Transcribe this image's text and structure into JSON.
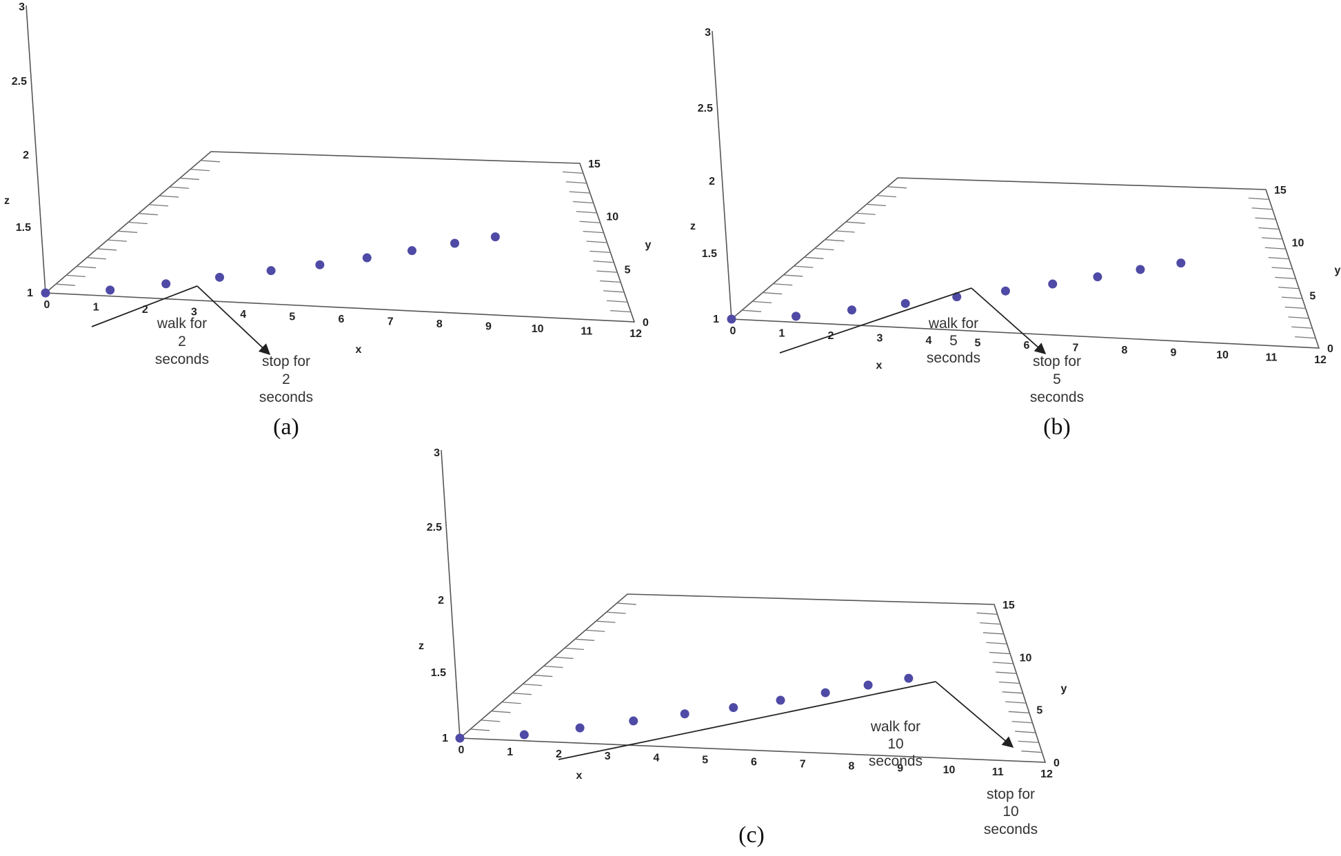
{
  "chart_data": [
    {
      "type": "scatter",
      "panel_label": "(a)",
      "xlabel": "x",
      "ylabel": "y",
      "zlabel": "z",
      "xlim": [
        0,
        12
      ],
      "ylim": [
        0,
        15
      ],
      "zlim": [
        1,
        3
      ],
      "xticks": [
        "0",
        "1",
        "2",
        "3",
        "4",
        "5",
        "6",
        "7",
        "8",
        "9",
        "10",
        "11",
        "12"
      ],
      "yticks": [
        "0",
        "5",
        "10",
        "15"
      ],
      "zticks": [
        "1",
        "1.5",
        "2",
        "2.5",
        "3"
      ],
      "points": [
        {
          "x": 0,
          "y": 0,
          "z": 1
        },
        {
          "x": 1.2,
          "y": 0.6,
          "z": 1
        },
        {
          "x": 2.2,
          "y": 1.5,
          "z": 1
        },
        {
          "x": 3.2,
          "y": 2.4,
          "z": 1
        },
        {
          "x": 4.2,
          "y": 3.3,
          "z": 1
        },
        {
          "x": 5.2,
          "y": 4.1,
          "z": 1
        },
        {
          "x": 6.2,
          "y": 5.0,
          "z": 1
        },
        {
          "x": 7.2,
          "y": 5.9,
          "z": 1
        },
        {
          "x": 8.2,
          "y": 6.8,
          "z": 1
        },
        {
          "x": 9.2,
          "y": 7.6,
          "z": 1
        }
      ],
      "annotations": {
        "walk": [
          "walk for",
          "2",
          "seconds"
        ],
        "stop": [
          "stop for",
          "2",
          "seconds"
        ]
      }
    },
    {
      "type": "scatter",
      "panel_label": "(b)",
      "xlabel": "x",
      "ylabel": "y",
      "zlabel": "z",
      "xlim": [
        0,
        12
      ],
      "ylim": [
        0,
        15
      ],
      "zlim": [
        1,
        3
      ],
      "xticks": [
        "0",
        "1",
        "2",
        "3",
        "4",
        "5",
        "6",
        "7",
        "8",
        "9",
        "10",
        "11",
        "12"
      ],
      "yticks": [
        "0",
        "5",
        "10",
        "15"
      ],
      "zticks": [
        "1",
        "1.5",
        "2",
        "2.5",
        "3"
      ],
      "points": [
        {
          "x": 0,
          "y": 0,
          "z": 1
        },
        {
          "x": 1.2,
          "y": 0.6,
          "z": 1
        },
        {
          "x": 2.2,
          "y": 1.5,
          "z": 1
        },
        {
          "x": 3.2,
          "y": 2.4,
          "z": 1
        },
        {
          "x": 4.2,
          "y": 3.3,
          "z": 1
        },
        {
          "x": 5.2,
          "y": 4.1,
          "z": 1
        },
        {
          "x": 6.2,
          "y": 5.0,
          "z": 1
        },
        {
          "x": 7.2,
          "y": 5.9,
          "z": 1
        },
        {
          "x": 8.2,
          "y": 6.8,
          "z": 1
        },
        {
          "x": 9.2,
          "y": 7.6,
          "z": 1
        }
      ],
      "annotations": {
        "walk": [
          "walk for",
          "5",
          "seconds"
        ],
        "stop": [
          "stop for",
          "5",
          "seconds"
        ]
      }
    },
    {
      "type": "scatter",
      "panel_label": "(c)",
      "xlabel": "x",
      "ylabel": "y",
      "zlabel": "z",
      "xlim": [
        0,
        12
      ],
      "ylim": [
        0,
        15
      ],
      "zlim": [
        1,
        3
      ],
      "xticks": [
        "0",
        "1",
        "2",
        "3",
        "4",
        "5",
        "6",
        "7",
        "8",
        "9",
        "10",
        "11",
        "12"
      ],
      "yticks": [
        "0",
        "5",
        "10",
        "15"
      ],
      "zticks": [
        "1",
        "1.5",
        "2",
        "2.5",
        "3"
      ],
      "points": [
        {
          "x": 0,
          "y": 0,
          "z": 1
        },
        {
          "x": 1.2,
          "y": 0.6,
          "z": 1
        },
        {
          "x": 2.2,
          "y": 1.5,
          "z": 1
        },
        {
          "x": 3.2,
          "y": 2.4,
          "z": 1
        },
        {
          "x": 4.2,
          "y": 3.3,
          "z": 1
        },
        {
          "x": 5.2,
          "y": 4.1,
          "z": 1
        },
        {
          "x": 6.2,
          "y": 5.0,
          "z": 1
        },
        {
          "x": 7.2,
          "y": 5.9,
          "z": 1
        },
        {
          "x": 8.2,
          "y": 6.8,
          "z": 1
        },
        {
          "x": 9.2,
          "y": 7.6,
          "z": 1
        }
      ],
      "annotations": {
        "walk": [
          "walk for",
          "10",
          "seconds"
        ],
        "stop": [
          "stop for",
          "10",
          "seconds"
        ]
      }
    }
  ],
  "colors": {
    "points": "#4e4aa5",
    "frame": "#555555"
  }
}
